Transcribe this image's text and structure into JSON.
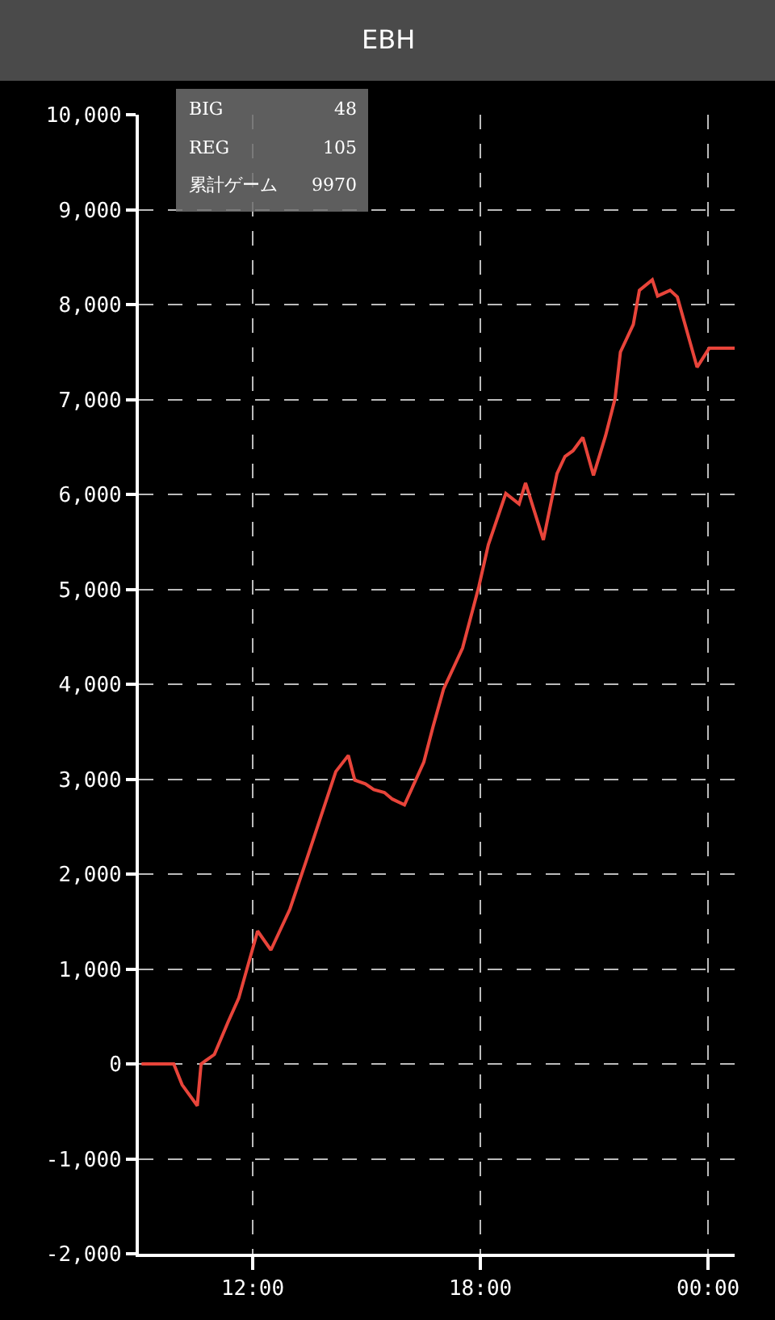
{
  "chart_data": {
    "type": "line",
    "title": "EBH",
    "x": [
      9.07,
      9.92,
      10.14,
      10.54,
      10.64,
      10.99,
      11.35,
      11.63,
      12.13,
      12.48,
      12.98,
      13.41,
      14.19,
      14.52,
      14.69,
      14.97,
      15.19,
      15.47,
      15.68,
      16.0,
      16.51,
      16.75,
      17.03,
      17.53,
      17.96,
      18.21,
      18.67,
      19.02,
      19.19,
      19.66,
      20.02,
      20.23,
      20.44,
      20.7,
      20.98,
      21.3,
      21.55,
      21.69,
      22.03,
      22.19,
      22.53,
      22.67,
      23.0,
      23.19,
      23.71,
      24.03,
      24.7
    ],
    "series": [
      {
        "color": "#e8443a",
        "values": [
          0,
          0,
          -220,
          -440,
          0,
          100,
          440,
          690,
          1400,
          1200,
          1630,
          2140,
          3080,
          3250,
          2990,
          2950,
          2890,
          2860,
          2790,
          2730,
          3180,
          3550,
          3950,
          4380,
          5030,
          5470,
          6010,
          5900,
          6120,
          5520,
          6220,
          6400,
          6460,
          6600,
          6200,
          6620,
          7010,
          7500,
          7790,
          8150,
          8260,
          8090,
          8150,
          8080,
          7340,
          7540,
          7540
        ]
      }
    ],
    "xlim": [
      9,
      24.7
    ],
    "xticks": [
      {
        "value": 12,
        "label": "12:00"
      },
      {
        "value": 18,
        "label": "18:00"
      },
      {
        "value": 24,
        "label": "00:00"
      }
    ],
    "ylim": [
      -2000,
      10000
    ],
    "yticks": [
      {
        "value": -2000,
        "label": "-2,000"
      },
      {
        "value": -1000,
        "label": "-1,000"
      },
      0,
      {
        "value": 1000,
        "label": "1,000"
      },
      {
        "value": 2000,
        "label": "2,000"
      },
      {
        "value": 3000,
        "label": "3,000"
      },
      {
        "value": 4000,
        "label": "4,000"
      },
      {
        "value": 5000,
        "label": "5,000"
      },
      {
        "value": 6000,
        "label": "6,000"
      },
      {
        "value": 7000,
        "label": "7,000"
      },
      {
        "value": 8000,
        "label": "8,000"
      },
      {
        "value": 9000,
        "label": "9,000"
      },
      {
        "value": 10000,
        "label": "10,000"
      }
    ],
    "annotations": [
      "BIG",
      "48",
      "REG",
      "105",
      "累計ゲーム",
      "9970"
    ],
    "grid": true,
    "marker": "none",
    "line_style": "solid"
  }
}
